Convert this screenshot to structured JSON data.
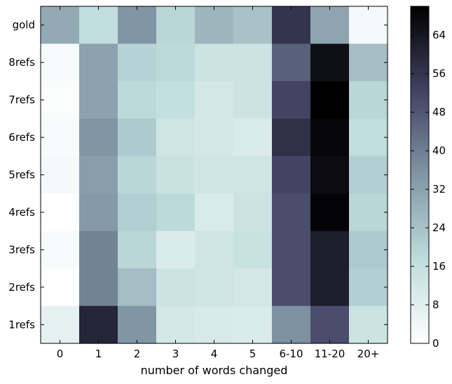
{
  "chart_data": {
    "type": "heatmap",
    "title": "",
    "xlabel": "number of words changed",
    "ylabel": "",
    "x_categories": [
      "0",
      "1",
      "2",
      "3",
      "4",
      "5",
      "6-10",
      "11-20",
      "20+"
    ],
    "y_categories": [
      "gold",
      "8refs",
      "7refs",
      "6refs",
      "5refs",
      "4refs",
      "3refs",
      "2refs",
      "1refs"
    ],
    "values": [
      [
        30,
        17,
        35,
        19,
        27,
        24,
        56,
        31,
        3
      ],
      [
        2,
        32,
        20,
        18,
        14,
        14,
        46,
        66,
        25
      ],
      [
        1,
        32,
        18,
        16,
        12,
        14,
        52,
        70,
        19
      ],
      [
        2,
        35,
        22,
        13,
        12,
        10,
        57,
        68,
        17
      ],
      [
        3,
        33,
        19,
        15,
        13,
        13,
        52,
        67,
        21
      ],
      [
        0,
        34,
        21,
        18,
        10,
        14,
        50,
        69,
        19
      ],
      [
        2,
        39,
        19,
        10,
        13,
        15,
        50,
        62,
        22
      ],
      [
        0,
        39,
        25,
        14,
        13,
        12,
        50,
        62,
        21
      ],
      [
        7,
        60,
        35,
        12,
        11,
        10,
        36,
        50,
        14
      ]
    ],
    "colorbar": {
      "min": 0,
      "max": 70,
      "ticks": [
        0,
        8,
        16,
        24,
        32,
        40,
        48,
        56,
        64
      ]
    },
    "colormap": [
      "#ffffff",
      "#bfdcdc",
      "#8196a5",
      "#414161",
      "#000000"
    ],
    "grid": false
  }
}
